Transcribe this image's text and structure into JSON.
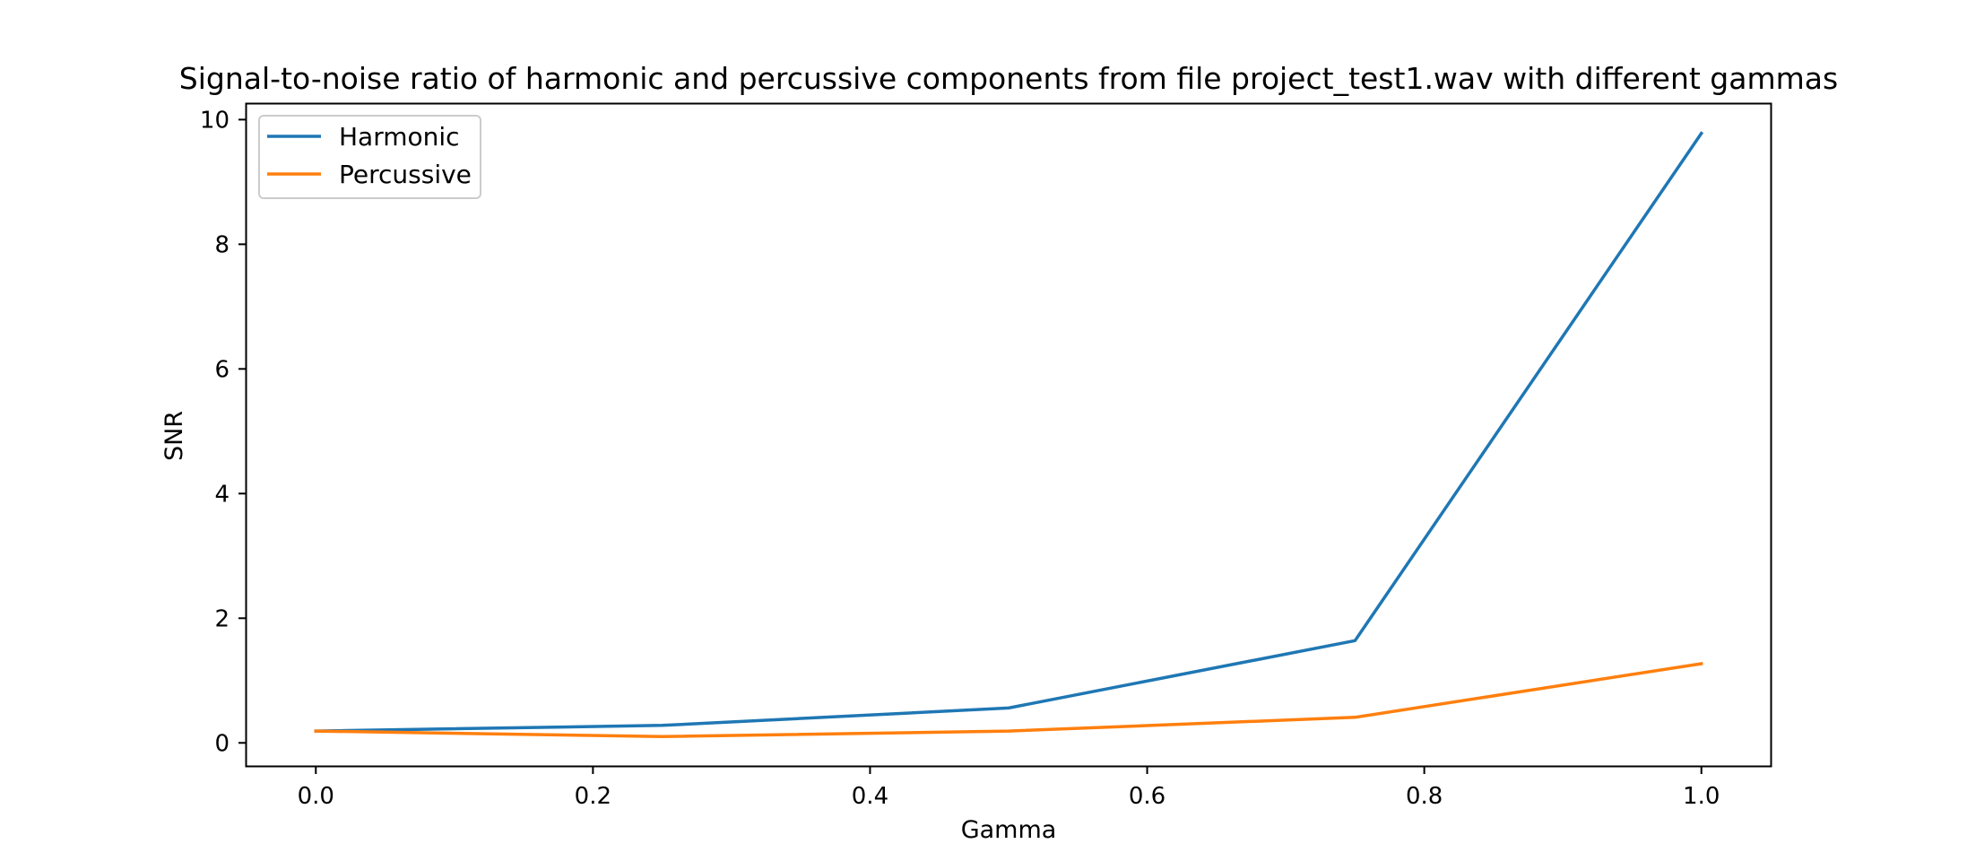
{
  "chart_data": {
    "type": "line",
    "title": "Signal-to-noise ratio of harmonic and percussive components from file project_test1.wav with different gammas",
    "xlabel": "Gamma",
    "ylabel": "SNR",
    "x": [
      0.0,
      0.25,
      0.5,
      0.75,
      1.0
    ],
    "xlim": [
      -0.05,
      1.05
    ],
    "ylim": [
      -0.37,
      10.25
    ],
    "xticks": [
      "0.0",
      "0.2",
      "0.4",
      "0.6",
      "0.8",
      "1.0"
    ],
    "yticks": [
      "0",
      "2",
      "4",
      "6",
      "8",
      "10"
    ],
    "grid": false,
    "legend_position": "top-left",
    "series": [
      {
        "name": "Harmonic",
        "color": "#1f77b4",
        "values": [
          0.19,
          0.28,
          0.56,
          1.64,
          9.78
        ]
      },
      {
        "name": "Percussive",
        "color": "#ff7f0e",
        "values": [
          0.19,
          0.1,
          0.19,
          0.41,
          1.27
        ]
      }
    ]
  }
}
